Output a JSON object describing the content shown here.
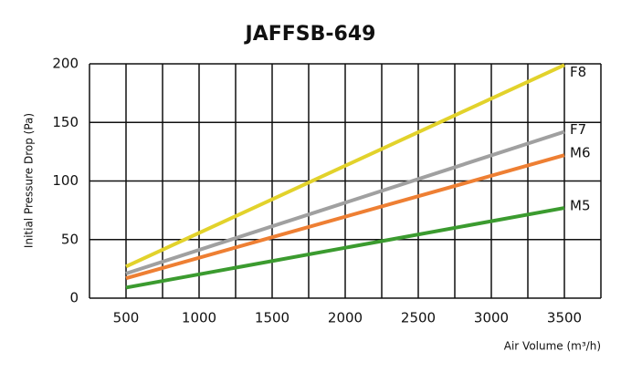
{
  "chart_data": {
    "type": "line",
    "title": "JAFFSB-649",
    "x_label": "Air Volume (m³/h)",
    "y_label": "Initial Pressure Drop (Pa)",
    "x": [
      500,
      3500
    ],
    "series": [
      {
        "name": "F8",
        "color": "#e2d22b",
        "values": [
          27,
          199
        ]
      },
      {
        "name": "F7",
        "color": "#a0a0a0",
        "values": [
          21,
          142
        ]
      },
      {
        "name": "M6",
        "color": "#ee7f33",
        "values": [
          17,
          122
        ]
      },
      {
        "name": "M5",
        "color": "#3b9b2f",
        "values": [
          9,
          77
        ]
      }
    ],
    "xlim": [
      250,
      3750
    ],
    "xticks": [
      500,
      1000,
      1500,
      2000,
      2500,
      3000,
      3500
    ],
    "xgrid": [
      250,
      500,
      750,
      1000,
      1250,
      1500,
      1750,
      2000,
      2250,
      2500,
      2750,
      3000,
      3250,
      3500,
      3750
    ],
    "ylim": [
      0,
      200
    ],
    "yticks": [
      0,
      50,
      100,
      150,
      200
    ],
    "grid": true
  }
}
